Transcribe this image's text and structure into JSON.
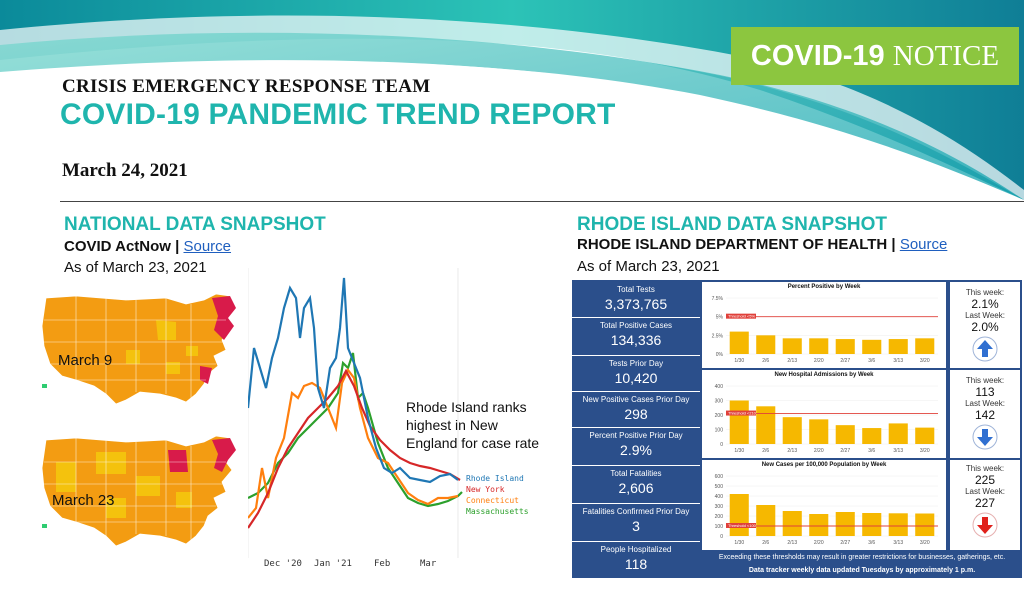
{
  "header": {
    "notice_bold": "COVID-19",
    "notice_rest": "NOTICE",
    "team": "CRISIS EMERGENCY RESPONSE TEAM",
    "report_title": "COVID-19 PANDEMIC TREND REPORT",
    "date": "March 24, 2021"
  },
  "national": {
    "title": "NATIONAL DATA SNAPSHOT",
    "source_prefix": "COVID ActNow |",
    "source_link": "Source",
    "as_of": "As of March 23, 2021",
    "map1_label": "March 9",
    "map2_label": "March 23",
    "annotation": "Rhode Island  ranks highest in New England for case rate",
    "chart": {
      "x_ticks": [
        "Dec '20",
        "Jan '21",
        "Feb",
        "Mar"
      ],
      "legend": [
        {
          "name": "Rhode Island",
          "color": "#1f77b4"
        },
        {
          "name": "New York",
          "color": "#d62728"
        },
        {
          "name": "Connecticut",
          "color": "#ff7f0e"
        },
        {
          "name": "Massachusetts",
          "color": "#2ca02c"
        }
      ]
    }
  },
  "ri": {
    "title": "RHODE ISLAND DATA SNAPSHOT",
    "source_prefix": "RHODE ISLAND DEPARTMENT OF HEALTH |",
    "source_link": "Source",
    "as_of": "As of March 23, 2021",
    "kpis": [
      {
        "label": "Total Tests",
        "value": "3,373,765"
      },
      {
        "label": "Total Positive Cases",
        "value": "134,336"
      },
      {
        "label": "Tests Prior Day",
        "value": "10,420"
      },
      {
        "label": "New Positive Cases Prior Day",
        "value": "298"
      },
      {
        "label": "Percent Positive Prior Day",
        "value": "2.9%"
      },
      {
        "label": "Total Fatalities",
        "value": "2,606"
      },
      {
        "label": "Fatalities Confirmed Prior Day",
        "value": "3"
      },
      {
        "label": "People Hospitalized",
        "value": "118"
      }
    ],
    "panels": [
      {
        "title": "Percent Positive by Week",
        "threshold_label": "Threshold <5%",
        "this_week_label": "This week:",
        "this_week": "2.1%",
        "last_week_label": "Last Week:",
        "last_week": "2.0%",
        "trend": "up"
      },
      {
        "title": "New Hospital Admissions by Week",
        "threshold_label": "Threshold <210",
        "this_week_label": "This week:",
        "this_week": "113",
        "last_week_label": "Last Week:",
        "last_week": "142",
        "trend": "down"
      },
      {
        "title": "New Cases per 100,000 Population by Week",
        "threshold_label": "Threshold <100",
        "this_week_label": "This week:",
        "this_week": "225",
        "last_week_label": "Last Week:",
        "last_week": "227",
        "trend": "down-red"
      }
    ],
    "footer1": "Exceeding these thresholds may result in greater restrictions for businesses, gatherings, etc.",
    "footer2": "Data tracker weekly data updated Tuesdays by approximately 1 p.m."
  },
  "colors": {
    "teal": "#1fb5ad",
    "green": "#8cc63f",
    "navy": "#2b4f8b",
    "bar": "#f6b800",
    "threshold": "#e0403a"
  },
  "chart_data": [
    {
      "type": "bar",
      "title": "Percent Positive by Week",
      "categories": [
        "1/30",
        "2/6",
        "2/13",
        "2/20",
        "2/27",
        "3/6",
        "3/13",
        "3/20"
      ],
      "values": [
        3.0,
        2.5,
        2.1,
        2.1,
        2.0,
        1.9,
        2.0,
        2.1
      ],
      "y_ticks": [
        "7.5%",
        "5%",
        "2.5%",
        "0%"
      ],
      "ylim": [
        0,
        7.5
      ],
      "threshold": 5
    },
    {
      "type": "bar",
      "title": "New Hospital Admissions by Week",
      "categories": [
        "1/30",
        "2/6",
        "2/13",
        "2/20",
        "2/27",
        "3/6",
        "3/13",
        "3/20"
      ],
      "values": [
        300,
        260,
        185,
        170,
        130,
        110,
        142,
        113
      ],
      "y_ticks": [
        "400",
        "300",
        "200",
        "100",
        "0"
      ],
      "ylim": [
        0,
        400
      ],
      "threshold": 210
    },
    {
      "type": "bar",
      "title": "New Cases per 100,000 Population by Week",
      "categories": [
        "1/30",
        "2/6",
        "2/13",
        "2/20",
        "2/27",
        "3/6",
        "3/13",
        "3/20"
      ],
      "values": [
        420,
        310,
        250,
        220,
        240,
        230,
        227,
        225
      ],
      "y_ticks": [
        "600",
        "500",
        "400",
        "300",
        "200",
        "100",
        "0"
      ],
      "ylim": [
        0,
        600
      ],
      "threshold": 100
    }
  ]
}
